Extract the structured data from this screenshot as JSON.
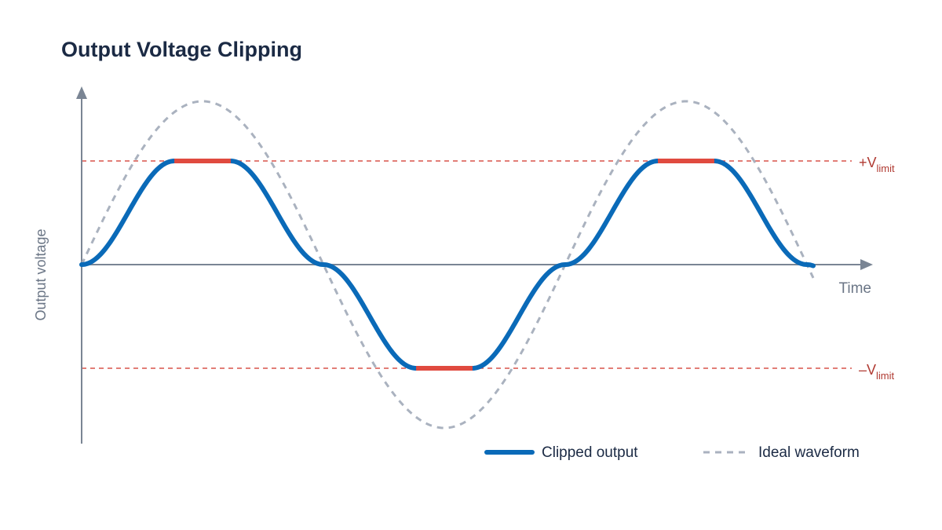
{
  "title": "Output Voltage Clipping",
  "axes": {
    "y_label": "Output voltage",
    "x_label": "Time"
  },
  "limits": {
    "upper": {
      "main": "+V",
      "sub": "limit"
    },
    "lower": {
      "main": "–V",
      "sub": "limit"
    }
  },
  "legend": {
    "items": [
      "Clipped output",
      "Ideal waveform"
    ]
  }
}
